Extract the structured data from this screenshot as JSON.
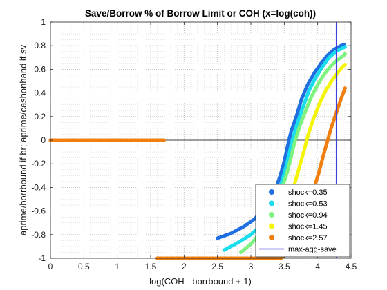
{
  "chart_data": {
    "type": "scatter",
    "title": "Save/Borrow % of Borrow Limit or COH (x=log(coh))",
    "xlabel": "log(COH - borrbound + 1)",
    "ylabel": "aprime/borrbound if br; aprime/cashonhand if sv",
    "xlim": [
      0,
      4.5
    ],
    "ylim": [
      -1,
      1
    ],
    "x_ticks": [
      "0",
      "0.5",
      "1",
      "1.5",
      "2",
      "2.5",
      "3",
      "3.5",
      "4",
      "4.5"
    ],
    "y_ticks": [
      "-1",
      "-0.8",
      "-0.6",
      "-0.4",
      "-0.2",
      "0",
      "0.2",
      "0.4",
      "0.6",
      "0.8",
      "1"
    ],
    "grid": "major and minor, dotted",
    "legend_position": "bottom-right",
    "horizontal_reference_y": 0,
    "series": [
      {
        "name": "shock=0.35",
        "color": "#1f6fe0",
        "points": [
          [
            2.5,
            -0.83
          ],
          [
            2.7,
            -0.79
          ],
          [
            2.9,
            -0.73
          ],
          [
            3.05,
            -0.67
          ],
          [
            3.2,
            -0.58
          ],
          [
            3.3,
            -0.5
          ],
          [
            3.38,
            -0.4
          ],
          [
            3.44,
            -0.3
          ],
          [
            3.5,
            -0.18
          ],
          [
            3.55,
            -0.05
          ],
          [
            3.6,
            0.07
          ],
          [
            3.68,
            0.2
          ],
          [
            3.76,
            0.35
          ],
          [
            3.85,
            0.47
          ],
          [
            3.95,
            0.57
          ],
          [
            4.05,
            0.65
          ],
          [
            4.15,
            0.72
          ],
          [
            4.25,
            0.77
          ],
          [
            4.35,
            0.8
          ],
          [
            4.4,
            0.81
          ]
        ]
      },
      {
        "name": "shock=0.53",
        "color": "#19dcec",
        "points": [
          [
            2.6,
            -0.93
          ],
          [
            2.8,
            -0.87
          ],
          [
            3.0,
            -0.8
          ],
          [
            3.15,
            -0.72
          ],
          [
            3.28,
            -0.62
          ],
          [
            3.38,
            -0.5
          ],
          [
            3.45,
            -0.38
          ],
          [
            3.52,
            -0.24
          ],
          [
            3.58,
            -0.1
          ],
          [
            3.63,
            0.02
          ],
          [
            3.7,
            0.15
          ],
          [
            3.78,
            0.28
          ],
          [
            3.87,
            0.42
          ],
          [
            3.97,
            0.53
          ],
          [
            4.07,
            0.62
          ],
          [
            4.17,
            0.7
          ],
          [
            4.27,
            0.75
          ],
          [
            4.37,
            0.78
          ],
          [
            4.41,
            0.79
          ]
        ]
      },
      {
        "name": "shock=0.94",
        "color": "#7ef27e",
        "points": [
          [
            2.85,
            -0.95
          ],
          [
            3.0,
            -0.88
          ],
          [
            3.15,
            -0.78
          ],
          [
            3.28,
            -0.67
          ],
          [
            3.38,
            -0.55
          ],
          [
            3.46,
            -0.42
          ],
          [
            3.54,
            -0.28
          ],
          [
            3.6,
            -0.15
          ],
          [
            3.65,
            -0.03
          ],
          [
            3.72,
            0.1
          ],
          [
            3.8,
            0.22
          ],
          [
            3.9,
            0.36
          ],
          [
            4.0,
            0.47
          ],
          [
            4.1,
            0.56
          ],
          [
            4.2,
            0.63
          ],
          [
            4.3,
            0.68
          ],
          [
            4.37,
            0.71
          ],
          [
            4.41,
            0.73
          ]
        ]
      },
      {
        "name": "shock=1.45",
        "color": "#f4f40a",
        "points": [
          [
            3.2,
            -0.97
          ],
          [
            3.32,
            -0.88
          ],
          [
            3.42,
            -0.76
          ],
          [
            3.52,
            -0.62
          ],
          [
            3.6,
            -0.48
          ],
          [
            3.67,
            -0.34
          ],
          [
            3.74,
            -0.2
          ],
          [
            3.8,
            -0.08
          ],
          [
            3.86,
            0.05
          ],
          [
            3.93,
            0.17
          ],
          [
            4.02,
            0.3
          ],
          [
            4.12,
            0.42
          ],
          [
            4.22,
            0.51
          ],
          [
            4.3,
            0.57
          ],
          [
            4.37,
            0.62
          ],
          [
            4.41,
            0.64
          ]
        ]
      },
      {
        "name": "shock=2.57",
        "color": "#f07f10",
        "points": [
          [
            0,
            0
          ],
          [
            0.2,
            0
          ],
          [
            0.4,
            0
          ],
          [
            0.6,
            0
          ],
          [
            0.8,
            0
          ],
          [
            1.0,
            0
          ],
          [
            1.2,
            0
          ],
          [
            1.4,
            0
          ],
          [
            1.6,
            0
          ],
          [
            1.7,
            0
          ],
          [
            1.6,
            -1
          ],
          [
            2.0,
            -1
          ],
          [
            2.4,
            -1
          ],
          [
            2.8,
            -1
          ],
          [
            3.1,
            -1
          ],
          [
            3.3,
            -1
          ],
          [
            3.45,
            -1
          ],
          [
            3.6,
            -0.93
          ],
          [
            3.7,
            -0.82
          ],
          [
            3.8,
            -0.68
          ],
          [
            3.88,
            -0.54
          ],
          [
            3.95,
            -0.4
          ],
          [
            4.02,
            -0.27
          ],
          [
            4.08,
            -0.14
          ],
          [
            4.14,
            -0.02
          ],
          [
            4.2,
            0.1
          ],
          [
            4.26,
            0.2
          ],
          [
            4.32,
            0.3
          ],
          [
            4.37,
            0.38
          ],
          [
            4.41,
            0.44
          ]
        ]
      }
    ],
    "vertical_line": {
      "name": "max-agg-save",
      "x": 4.28,
      "color": "#3f3fe0"
    }
  }
}
